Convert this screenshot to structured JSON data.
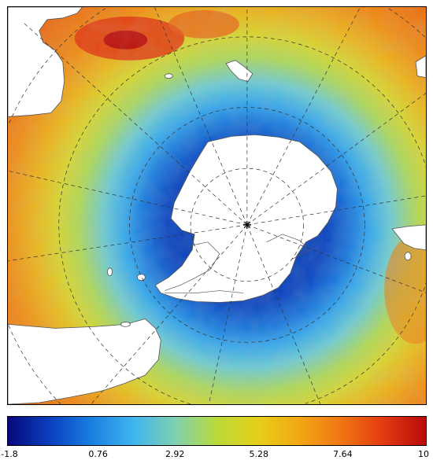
{
  "map": {
    "projection": "south-polar-stereographic",
    "colormap": [
      "#08087a",
      "#0a3fbf",
      "#1a7fe0",
      "#3fb5f0",
      "#7fd0b0",
      "#bada3a",
      "#e6cf18",
      "#f2a615",
      "#f07412",
      "#e23a10",
      "#b80a0a"
    ],
    "land_color": "#ffffff",
    "coastline_color": "#555555",
    "graticule_color": "#333333"
  },
  "colorbar": {
    "min": -1.8,
    "max": 10,
    "ticks": [
      "-1.8",
      "0.76",
      "2.92",
      "5.28",
      "7.64",
      "10"
    ],
    "tick_values": [
      -1.8,
      0.76,
      2.92,
      5.28,
      7.64,
      10
    ]
  }
}
